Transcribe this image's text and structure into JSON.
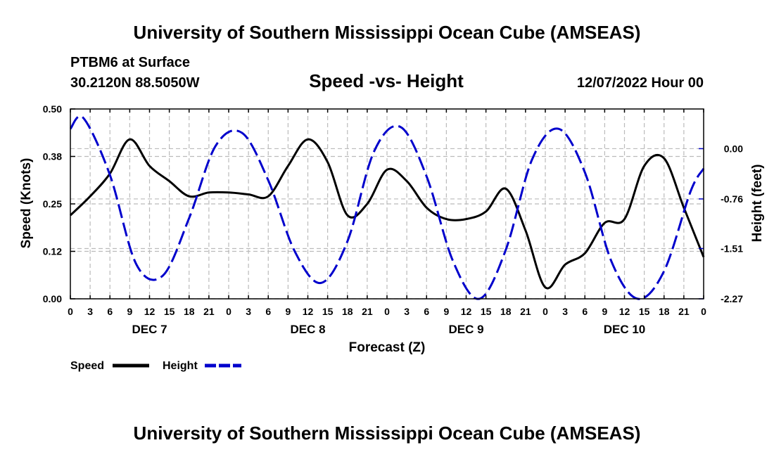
{
  "header": {
    "title": "University of Southern Mississippi Ocean Cube (AMSEAS)",
    "station": "PTBM6 at Surface",
    "coords": "30.2120N  88.5050W",
    "date": "12/07/2022 Hour 00",
    "footer_title": "University of Southern Mississippi Ocean Cube (AMSEAS)"
  },
  "colors": {
    "speed": "#000000",
    "height": "#0000cc",
    "grid": "#bbbbbb"
  },
  "chart_data": {
    "type": "line",
    "title": "Speed -vs- Height",
    "xlabel": "Forecast (Z)",
    "ylabel": "Speed (Knots)",
    "y2label": "Height (feet)",
    "x_range": [
      0,
      96
    ],
    "y_range": [
      0,
      0.5
    ],
    "y2_range": [
      -2.27,
      0.6
    ],
    "y_ticks": [
      {
        "v": 0,
        "label": "0.00"
      },
      {
        "v": 0.125,
        "label": "0.12"
      },
      {
        "v": 0.25,
        "label": "0.25"
      },
      {
        "v": 0.375,
        "label": "0.38"
      },
      {
        "v": 0.5,
        "label": "0.50"
      }
    ],
    "y2_ticks": [
      {
        "v": 0.0,
        "label": "0.00"
      },
      {
        "v": -0.76,
        "label": "-0.76"
      },
      {
        "v": -1.51,
        "label": "-1.51"
      },
      {
        "v": -2.27,
        "label": "-2.27"
      }
    ],
    "x_tick_labels": [
      "0",
      "3",
      "6",
      "9",
      "12",
      "15",
      "18",
      "21",
      "0",
      "3",
      "6",
      "9",
      "12",
      "15",
      "18",
      "21",
      "0",
      "3",
      "6",
      "9",
      "12",
      "15",
      "18",
      "21",
      "0",
      "3",
      "6",
      "9",
      "12",
      "15",
      "18",
      "21",
      "0"
    ],
    "day_labels": [
      {
        "x": 12,
        "label": "DEC 7"
      },
      {
        "x": 36,
        "label": "DEC 8"
      },
      {
        "x": 60,
        "label": "DEC 9"
      },
      {
        "x": 84,
        "label": "DEC 10"
      }
    ],
    "legend": [
      "Speed",
      "Height"
    ],
    "series": [
      {
        "name": "Speed",
        "style": "solid",
        "axis": "left",
        "x": [
          0,
          3,
          6,
          9,
          12,
          15,
          18,
          21,
          24,
          27,
          30,
          33,
          36,
          39,
          42,
          45,
          48,
          51,
          54,
          57,
          60,
          63,
          66,
          69,
          72,
          75,
          78,
          81,
          84,
          87,
          90,
          93,
          96
        ],
        "values": [
          0.22,
          0.27,
          0.33,
          0.42,
          0.35,
          0.31,
          0.27,
          0.28,
          0.28,
          0.275,
          0.27,
          0.35,
          0.42,
          0.36,
          0.22,
          0.25,
          0.34,
          0.31,
          0.24,
          0.21,
          0.21,
          0.23,
          0.29,
          0.18,
          0.03,
          0.09,
          0.12,
          0.2,
          0.21,
          0.35,
          0.37,
          0.24,
          0.11
        ]
      },
      {
        "name": "Height",
        "style": "dashed",
        "axis": "right",
        "x": [
          0,
          2,
          6,
          10,
          14,
          18,
          22,
          26,
          30,
          34,
          38,
          42,
          46,
          50,
          54,
          58,
          62,
          66,
          70,
          74,
          78,
          82,
          86,
          90,
          94,
          96
        ],
        "values": [
          0.3,
          0.46,
          -0.4,
          -1.75,
          -1.92,
          -1.05,
          0.04,
          0.24,
          -0.48,
          -1.55,
          -2.03,
          -1.4,
          -0.05,
          0.33,
          -0.42,
          -1.7,
          -2.27,
          -1.53,
          -0.16,
          0.3,
          -0.36,
          -1.7,
          -2.27,
          -1.85,
          -0.65,
          -0.3
        ]
      }
    ]
  }
}
